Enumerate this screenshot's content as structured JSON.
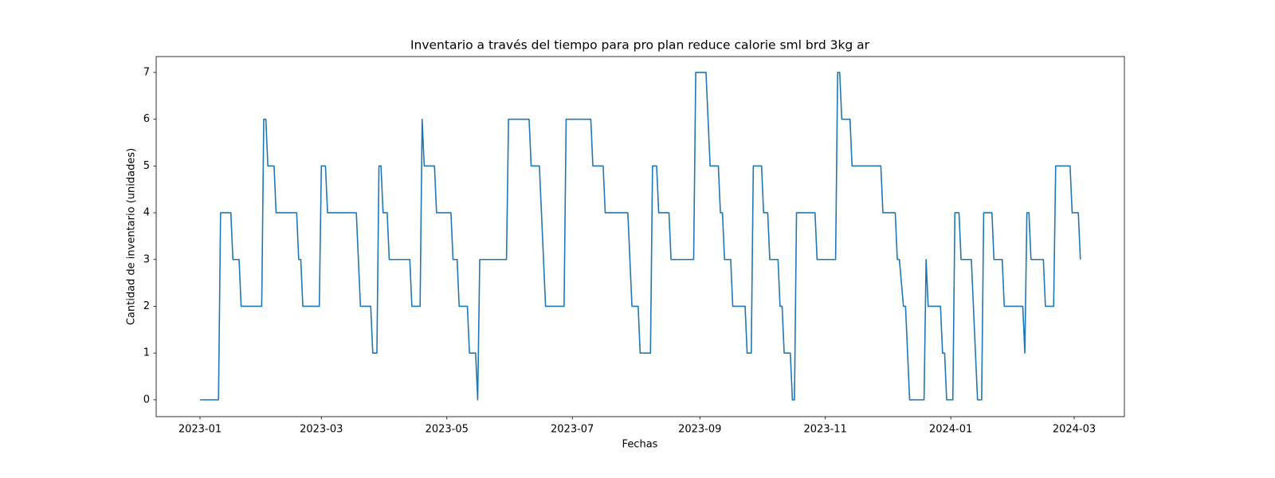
{
  "chart_data": {
    "type": "line",
    "title": "Inventario a través del tiempo para pro plan reduce calorie sml brd 3kg ar",
    "x_label": "Fechas",
    "y_label": "Cantidad de inventario (unidades)",
    "x": [
      0,
      9,
      10,
      15,
      16,
      19,
      20,
      30,
      31,
      32,
      33,
      36,
      37,
      47,
      48,
      49,
      50,
      58,
      59,
      61,
      62,
      76,
      78,
      83,
      84,
      86,
      87,
      88,
      89,
      91,
      92,
      102,
      103,
      107,
      108,
      109,
      114,
      115,
      122,
      123,
      125,
      126,
      130,
      131,
      134,
      135,
      136,
      149,
      150,
      160,
      161,
      165,
      168,
      177,
      178,
      190,
      191,
      196,
      197,
      208,
      210,
      213,
      214,
      219,
      220,
      222,
      223,
      228,
      229,
      240,
      241,
      246,
      248,
      252,
      253,
      254,
      255,
      258,
      259,
      265,
      266,
      268,
      269,
      273,
      274,
      276,
      277,
      281,
      282,
      283,
      284,
      287,
      288,
      289,
      290,
      299,
      300,
      309,
      310,
      311,
      312,
      316,
      317,
      331,
      332,
      338,
      339,
      340,
      342,
      343,
      345,
      352,
      353,
      354,
      360,
      361,
      362,
      363,
      366,
      367,
      369,
      370,
      375,
      378,
      380,
      381,
      385,
      386,
      390,
      391,
      400,
      401,
      402,
      403,
      404,
      410,
      411,
      415,
      416,
      423,
      424,
      427,
      428
    ],
    "values": [
      0,
      0,
      4,
      4,
      3,
      3,
      2,
      2,
      6,
      6,
      5,
      5,
      4,
      4,
      3,
      3,
      2,
      2,
      5,
      5,
      4,
      4,
      2,
      2,
      1,
      1,
      5,
      5,
      4,
      4,
      3,
      3,
      2,
      2,
      6,
      5,
      5,
      4,
      4,
      3,
      3,
      2,
      2,
      1,
      1,
      0,
      3,
      3,
      6,
      6,
      5,
      5,
      2,
      2,
      6,
      6,
      5,
      5,
      4,
      4,
      2,
      2,
      1,
      1,
      5,
      5,
      4,
      4,
      3,
      3,
      7,
      7,
      5,
      5,
      4,
      4,
      3,
      3,
      2,
      2,
      1,
      1,
      5,
      5,
      4,
      4,
      3,
      3,
      2,
      2,
      1,
      1,
      0,
      0,
      4,
      4,
      3,
      3,
      7,
      7,
      6,
      6,
      5,
      5,
      4,
      4,
      3,
      3,
      2,
      2,
      0,
      0,
      3,
      2,
      2,
      1,
      1,
      0,
      0,
      4,
      4,
      3,
      3,
      0,
      0,
      4,
      4,
      3,
      3,
      2,
      2,
      1,
      4,
      4,
      3,
      3,
      2,
      2,
      5,
      5,
      4,
      4,
      3
    ],
    "color": "#1f77b4",
    "xlim": [
      -21.3,
      449.4
    ],
    "xticks": [
      {
        "value": 0,
        "label": "2023-01"
      },
      {
        "value": 59,
        "label": "2023-03"
      },
      {
        "value": 120,
        "label": "2023-05"
      },
      {
        "value": 181,
        "label": "2023-07"
      },
      {
        "value": 243,
        "label": "2023-09"
      },
      {
        "value": 304,
        "label": "2023-11"
      },
      {
        "value": 365,
        "label": "2024-01"
      },
      {
        "value": 425,
        "label": "2024-03"
      }
    ],
    "ylim": [
      -0.36,
      7.34
    ],
    "yticks": [
      0,
      1,
      2,
      3,
      4,
      5,
      6,
      7
    ]
  }
}
